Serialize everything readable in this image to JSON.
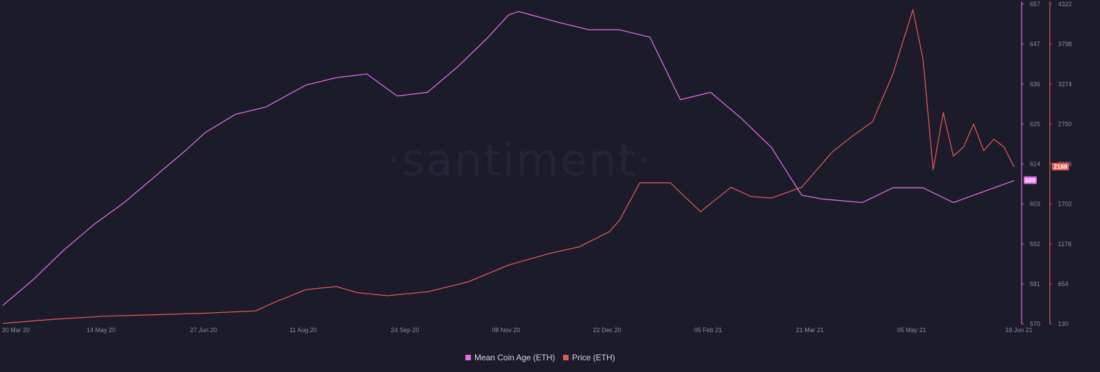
{
  "watermark": "·santiment·",
  "chart_data": {
    "type": "line",
    "x_ticks": [
      "30 Mar 20",
      "14 May 20",
      "27 Jun 20",
      "11 Aug 20",
      "24 Sep 20",
      "08 Nov 20",
      "22 Dec 20",
      "05 Feb 21",
      "21 Mar 21",
      "05 May 21",
      "18 Jun 21"
    ],
    "axes": {
      "coin_age": {
        "ylim": [
          570,
          657
        ],
        "ticks": [
          "657",
          "647",
          "636",
          "625",
          "614",
          "603",
          "592",
          "581",
          "570"
        ],
        "color": "#e06fe6"
      },
      "price": {
        "ylim": [
          130,
          4322
        ],
        "ticks": [
          "4322",
          "3798",
          "3274",
          "2750",
          "2226",
          "1702",
          "1178",
          "654",
          "130"
        ],
        "color": "#e05b55"
      }
    },
    "series": [
      {
        "name": "Mean Coin Age (ETH)",
        "axis": "coin_age",
        "color": "#e06fe6",
        "last_value": "609",
        "x": [
          0,
          0.03,
          0.06,
          0.09,
          0.12,
          0.15,
          0.18,
          0.2,
          0.23,
          0.26,
          0.28,
          0.3,
          0.33,
          0.36,
          0.39,
          0.42,
          0.45,
          0.48,
          0.5,
          0.51,
          0.55,
          0.58,
          0.61,
          0.64,
          0.67,
          0.7,
          0.73,
          0.76,
          0.79,
          0.81,
          0.85,
          0.88,
          0.91,
          0.94,
          1
        ],
        "y": [
          575,
          582,
          590,
          597,
          603,
          610,
          617,
          622,
          627,
          629,
          632,
          635,
          637,
          638,
          632,
          633,
          640,
          648,
          654,
          655,
          652,
          650,
          650,
          648,
          631,
          633,
          626,
          618,
          605,
          604,
          603,
          607,
          607,
          603,
          609
        ]
      },
      {
        "name": "Price (ETH)",
        "axis": "price",
        "color": "#e05b55",
        "last_value": "2188",
        "x": [
          0,
          0.05,
          0.1,
          0.15,
          0.2,
          0.25,
          0.27,
          0.3,
          0.33,
          0.35,
          0.38,
          0.42,
          0.46,
          0.5,
          0.54,
          0.57,
          0.6,
          0.61,
          0.63,
          0.66,
          0.69,
          0.72,
          0.74,
          0.76,
          0.79,
          0.82,
          0.84,
          0.86,
          0.88,
          0.9,
          0.91,
          0.92,
          0.93,
          0.94,
          0.95,
          0.96,
          0.97,
          0.98,
          0.99,
          1
        ],
        "y": [
          135,
          190,
          230,
          250,
          270,
          300,
          420,
          580,
          620,
          540,
          500,
          550,
          680,
          900,
          1050,
          1140,
          1340,
          1490,
          1980,
          1980,
          1600,
          1920,
          1800,
          1780,
          1920,
          2380,
          2590,
          2780,
          3400,
          4250,
          3600,
          2150,
          2900,
          2330,
          2450,
          2750,
          2400,
          2550,
          2450,
          2188
        ]
      }
    ],
    "legend": [
      "Mean Coin Age (ETH)",
      "Price (ETH)"
    ],
    "legend_placement": "bottom-center",
    "grid": false
  }
}
